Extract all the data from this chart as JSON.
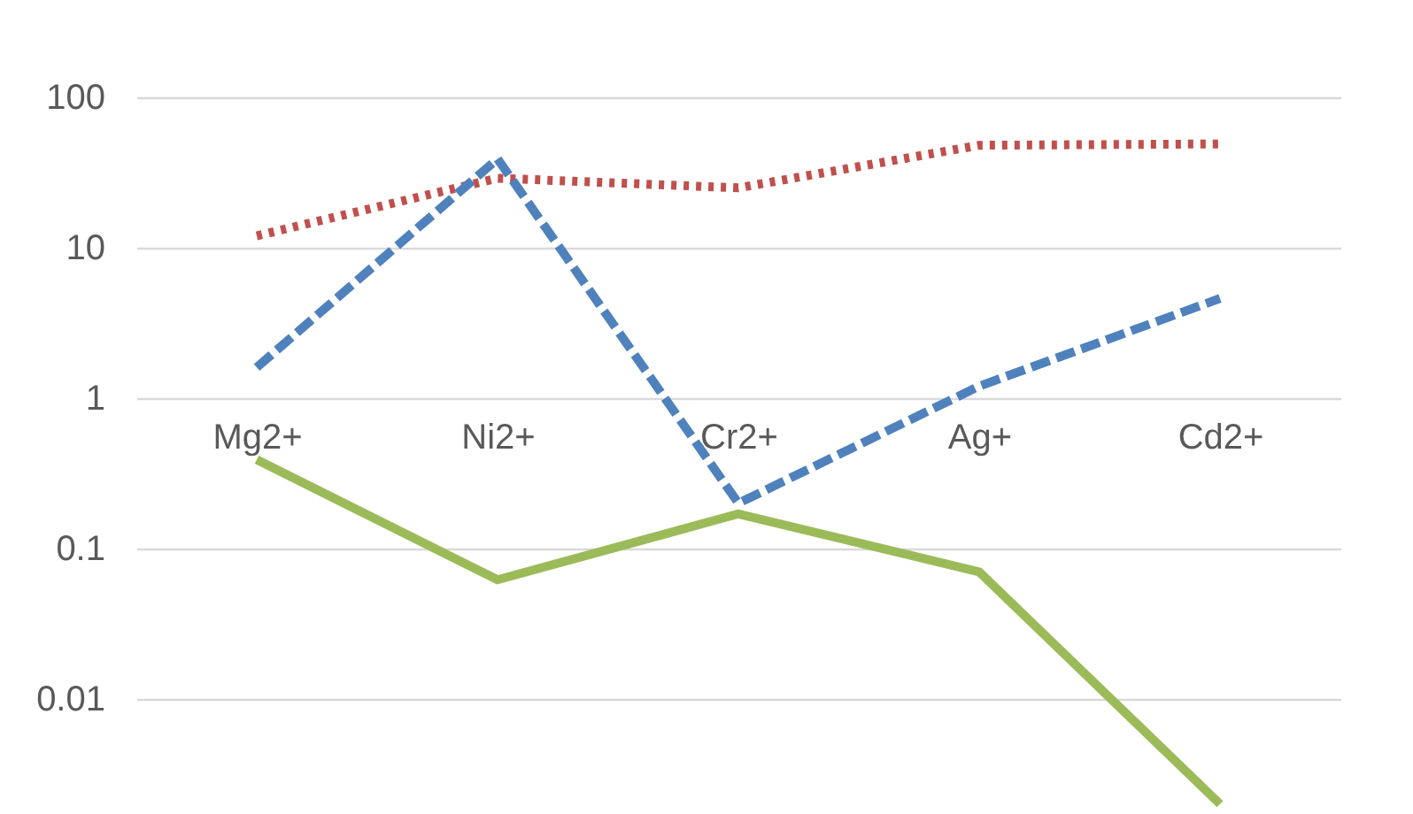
{
  "chart_data": {
    "type": "line",
    "categories": [
      "Mg2+",
      "Ni2+",
      "Cr2+",
      "Ag+",
      "Cd2+"
    ],
    "series": [
      {
        "color": "#c0504d",
        "line_style": "dotted",
        "values": [
          12,
          29,
          25,
          48,
          49
        ]
      },
      {
        "color": "#4f81bd",
        "line_style": "dashed",
        "values": [
          1.6,
          39,
          0.2,
          1.2,
          4.6
        ]
      },
      {
        "color": "#9bbb59",
        "line_style": "solid",
        "values": [
          0.39,
          0.062,
          0.17,
          0.07,
          0.002
        ]
      }
    ],
    "log": true,
    "ylim": [
      0.0015,
      100
    ],
    "yticks": [
      0.01,
      0.1,
      1,
      10,
      100
    ],
    "grid": "y"
  }
}
